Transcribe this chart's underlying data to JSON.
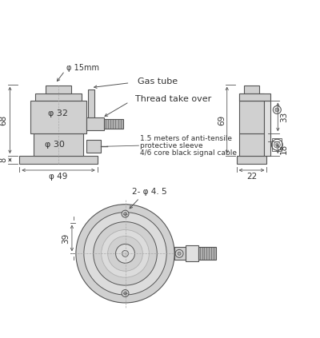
{
  "bg_color": "#ffffff",
  "line_color": "#555555",
  "dim_color": "#333333",
  "light_gray": "#d0d0d0",
  "mid_gray": "#b0b0b0",
  "dark_gray": "#888888",
  "annotations": {
    "phi15": "φ 15mm",
    "gas_tube": "Gas tube",
    "thread_take_over": "Thread take over",
    "phi32": "φ 32",
    "phi30": "φ 30",
    "phi49": "φ 49",
    "dim68": "68",
    "dim8": "8",
    "dim69": "69",
    "dim33": "33",
    "dim18": "18",
    "dim22": "22",
    "cable_text1": "1.5 meters of anti-tensile",
    "cable_text2": "protective sleeve",
    "cable_text3": "4/6 core black signal cable",
    "phi45": "2- φ 4. 5",
    "dim39": "39"
  }
}
